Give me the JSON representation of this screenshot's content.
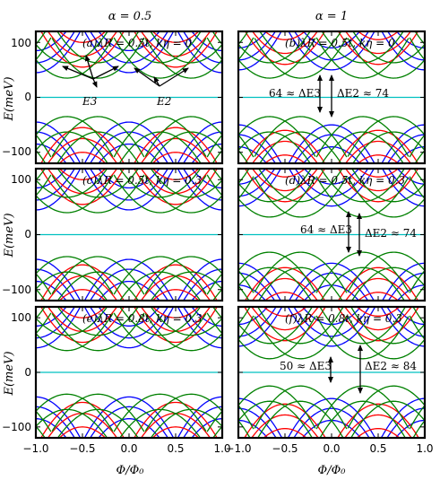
{
  "figure": {
    "column_titles": [
      "α = 0.5",
      "α = 1"
    ],
    "ylabel": "E(meV)",
    "xlabel": "Φ/Φ₀",
    "x_tick_labels": [
      "−1.0",
      "−0.5",
      "0.0",
      "0.5",
      "1.0"
    ],
    "x_tick_labels_right": [
      "−1.0",
      "−0.5",
      "0.0",
      "0.5",
      "1.0"
    ],
    "y_tick_labels": [
      "100",
      "0",
      "−100"
    ],
    "colors": {
      "red": "#ff0000",
      "green": "#008000",
      "blue": "#0000ff",
      "zero_line": "#00c0c0"
    }
  },
  "chart_data": [
    {
      "type": "line",
      "panel": "(a)",
      "label": "(a)λR = 0.5t, kη = 0",
      "xlim": [
        -1.0,
        1.0
      ],
      "ylim": [
        -120,
        120
      ],
      "annotations": [
        {
          "text": "E3",
          "x": -0.4,
          "y": 20
        },
        {
          "text": "E2",
          "x": 0.3,
          "y": 20
        }
      ],
      "bands": {
        "green": {
          "positive_minima_y": [
            35
          ],
          "positive_minima_x": [
            -0.33,
            0.33
          ],
          "negative_maxima_y": [
            -35
          ]
        },
        "red": {
          "note": "parabolic bands with period 1 in Φ/Φ0 shifted by 0.5"
        },
        "blue": {
          "note": "parabolic bands with period 1 in Φ/Φ0"
        }
      },
      "zero_line": 0
    },
    {
      "type": "line",
      "panel": "(b)",
      "label": "(b)λR = 0.5t, kη = 0",
      "xlim": [
        -1.0,
        1.0
      ],
      "ylim": [
        -120,
        120
      ],
      "annotations": [
        {
          "text": "64 ≈ ΔE3",
          "x": 0.0,
          "y": 0
        },
        {
          "text": "ΔE2 ≈ 74",
          "x": 0.0,
          "y": 0
        }
      ],
      "gaps": {
        "ΔE3": 64,
        "ΔE2": 74
      },
      "zero_line": 0
    },
    {
      "type": "line",
      "panel": "(c)",
      "label": "(c)λR = 0.5t, kη = 0.3",
      "xlim": [
        -1.0,
        1.0
      ],
      "ylim": [
        -120,
        120
      ],
      "zero_line": 0
    },
    {
      "type": "line",
      "panel": "(d)",
      "label": "(d)λR = 0.5t, kη = 0.3",
      "xlim": [
        -1.0,
        1.0
      ],
      "ylim": [
        -120,
        120
      ],
      "annotations": [
        {
          "text": "64 ≈ ΔE3",
          "x": 0.0,
          "y": 0
        },
        {
          "text": "ΔE2 ≈ 74",
          "x": 0.3,
          "y": 0
        }
      ],
      "gaps": {
        "ΔE3": 64,
        "ΔE2": 74
      },
      "zero_line": 0
    },
    {
      "type": "line",
      "panel": "(e)",
      "label": "(e)λR = 0.8t, kη = 0.3",
      "xlim": [
        -1.0,
        1.0
      ],
      "ylim": [
        -120,
        120
      ],
      "zero_line": 0
    },
    {
      "type": "line",
      "panel": "(f)",
      "label": "(f)λR = 0.8t, kη = 0.3",
      "xlim": [
        -1.0,
        1.0
      ],
      "ylim": [
        -120,
        120
      ],
      "annotations": [
        {
          "text": "50 ≈ ΔE3",
          "x": 0.0,
          "y": 0
        },
        {
          "text": "ΔE2 ≈ 84",
          "x": 0.3,
          "y": 0
        }
      ],
      "gaps": {
        "ΔE3": 50,
        "ΔE2": 84
      },
      "zero_line": 0
    }
  ],
  "labels": {
    "a": "(a)λR = 0.5t, kη = 0",
    "b": "(b)λR = 0.5t, kη = 0",
    "c": "(c)λR = 0.5t, kη = 0.3",
    "d": "(d)λR = 0.5t, kη = 0.3",
    "e": "(e)λR = 0.8t, kη = 0.3",
    "f": "(f)λR = 0.8t, kη = 0.3",
    "e3": "E3",
    "e2": "E2",
    "b_left": "64 ≈ ΔE3",
    "b_right": "ΔE2 ≈ 74",
    "d_left": "64 ≈ ΔE3",
    "d_right": "ΔE2 ≈ 74",
    "f_left": "50 ≈ ΔE3",
    "f_right": "ΔE2 ≈ 84"
  }
}
